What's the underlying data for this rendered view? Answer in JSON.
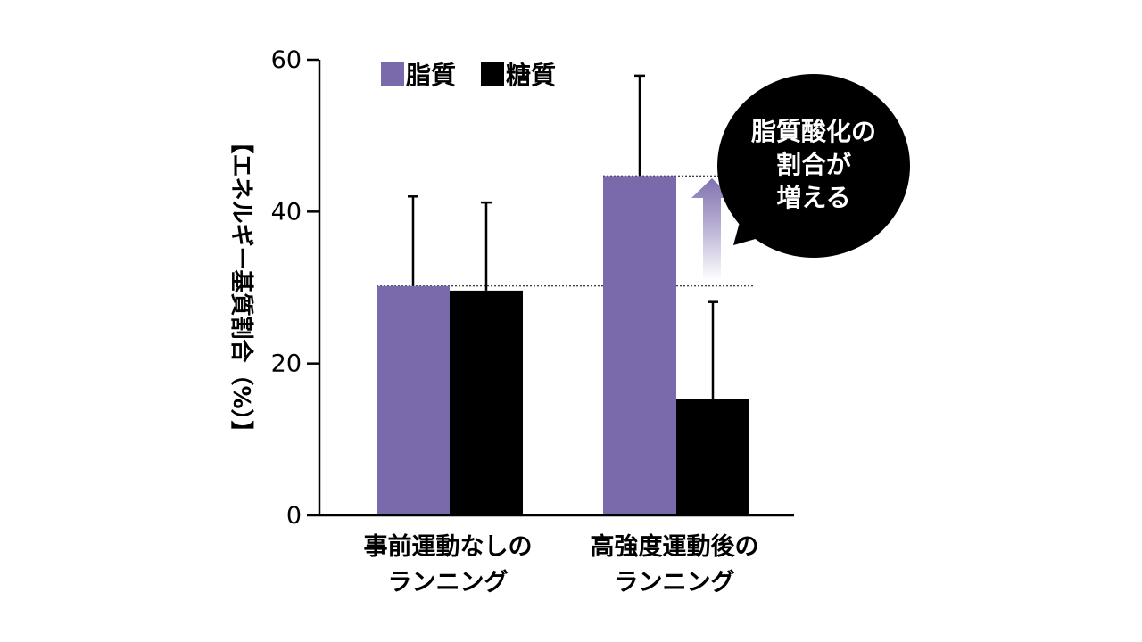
{
  "chart_data": {
    "type": "bar",
    "ylabel": "【エネルギー基質割合（%）】",
    "ylim": [
      0,
      60
    ],
    "yticks": [
      0,
      20,
      40,
      60
    ],
    "categories": [
      [
        "事前運動なしの",
        "ランニング"
      ],
      [
        "高強度運動後の",
        "ランニング"
      ]
    ],
    "series": [
      {
        "name": "脂質",
        "color": "#7a6aac",
        "values": [
          30.2,
          44.7
        ],
        "errors": [
          11.8,
          13.2
        ]
      },
      {
        "name": "糖質",
        "color": "#000000",
        "values": [
          29.6,
          15.3
        ],
        "errors": [
          11.6,
          12.8
        ]
      }
    ],
    "legend_position": "top-left",
    "reference_lines": [
      30.2,
      44.7
    ],
    "callout": {
      "lines": [
        "脂質酸化の",
        "割合が",
        "増える"
      ]
    }
  }
}
